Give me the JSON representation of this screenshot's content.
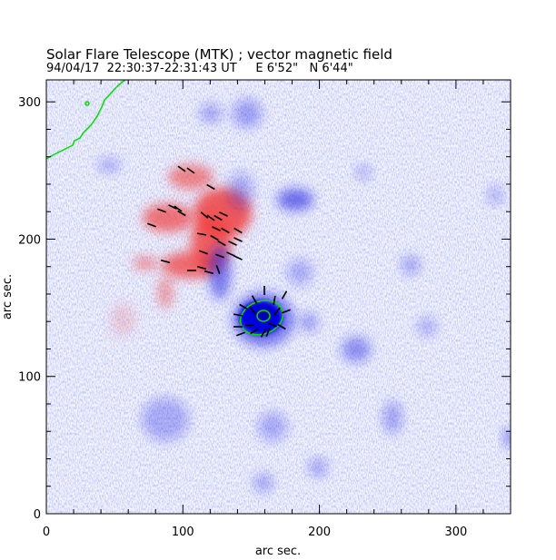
{
  "chart_data": {
    "type": "heatmap",
    "title": "Solar Flare Telescope (MTK) ; vector magnetic field",
    "subtitle": "94/04/17  22:30:37-22:31:43 UT     E 6'52\"   N 6'44\"",
    "xlabel": "arc sec.",
    "ylabel": "arc sec.",
    "xlim": [
      0,
      340
    ],
    "ylim": [
      0,
      316
    ],
    "xticks": [
      0,
      100,
      200,
      300
    ],
    "yticks": [
      0,
      100,
      200,
      300
    ],
    "minor_tick_step": 20,
    "colors": {
      "positive": "#f04040",
      "negative": "#2020e0",
      "contour": "#00e000",
      "vector": "#000000"
    }
  }
}
